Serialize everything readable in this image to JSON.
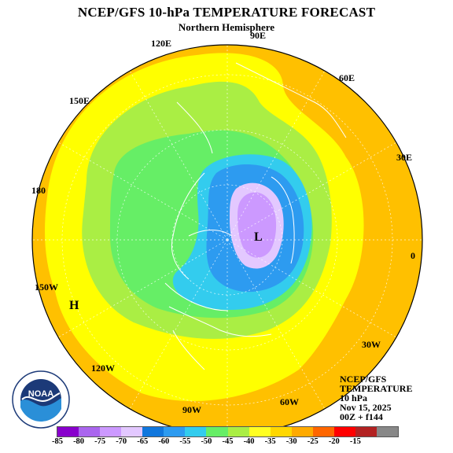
{
  "title": "NCEP/GFS 10-hPa TEMPERATURE FORECAST",
  "subtitle": "Northern Hemisphere",
  "longitude_labels": {
    "e90": "90E",
    "e120": "120E",
    "e60": "60E",
    "e150": "150E",
    "e30": "30E",
    "d180": "180",
    "zero": "0",
    "w150": "150W",
    "w30": "30W",
    "w120": "120W",
    "w90": "90W",
    "w60": "60W"
  },
  "markers": {
    "low": "L",
    "high": "H"
  },
  "info": {
    "line1": "NCEP/GFS",
    "line2": "TEMPERATURE",
    "line3": "10 hPa",
    "line4": "Nov 15, 2025",
    "line5": "00Z + f144"
  },
  "logo_text": "NOAA",
  "colorbar": {
    "colors": [
      "#8800cc",
      "#aa66ee",
      "#cc99ff",
      "#e3c8ff",
      "#1177dd",
      "#2d9bf0",
      "#33ccee",
      "#66ee66",
      "#aaee44",
      "#ffff22",
      "#ffd700",
      "#ffaa00",
      "#ff6600",
      "#ff0000",
      "#b22222",
      "#888888"
    ],
    "ticks": [
      "-85",
      "-80",
      "-75",
      "-70",
      "-65",
      "-60",
      "-55",
      "-50",
      "-45",
      "-40",
      "-35",
      "-30",
      "-25",
      "-20",
      "-15"
    ]
  },
  "field_colors": {
    "orange": "#ffc000",
    "yellow": "#ffff00",
    "light_green": "#aaee44",
    "green": "#66ee66",
    "cyan": "#33ccee",
    "blue": "#2d9bf0",
    "dark_blue": "#1177dd",
    "lavender": "#e3c8ff",
    "purple": "#cc99ff"
  }
}
